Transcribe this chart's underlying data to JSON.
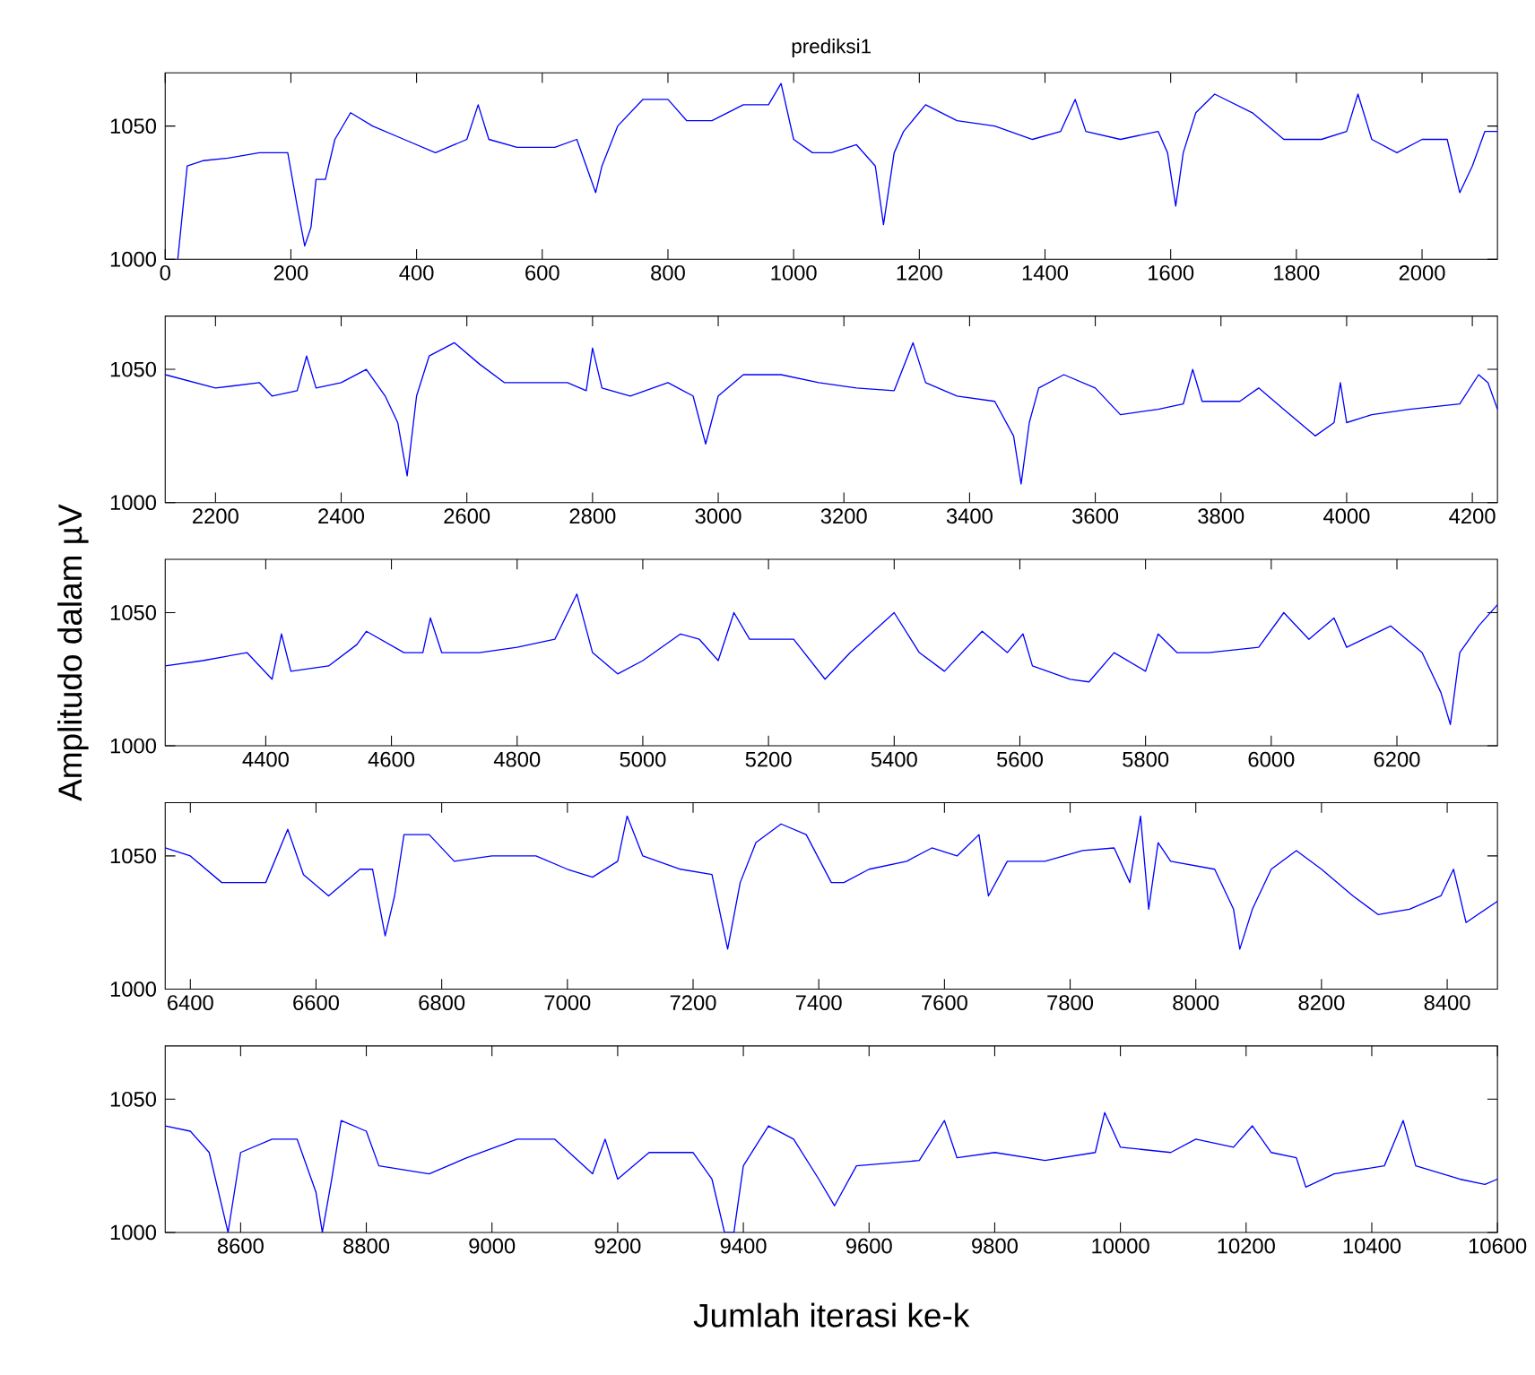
{
  "chart_data": [
    {
      "type": "line",
      "title": "prediksi1",
      "color": "#0000ff",
      "xlim": [
        0,
        2120
      ],
      "ylim": [
        1000,
        1070
      ],
      "xticks": [
        0,
        200,
        400,
        600,
        800,
        1000,
        1200,
        1400,
        1600,
        1800,
        2000
      ],
      "yticks": [
        1000,
        1050
      ],
      "x": [
        20,
        35,
        60,
        100,
        150,
        195,
        210,
        222,
        232,
        240,
        255,
        270,
        295,
        330,
        380,
        430,
        480,
        498,
        515,
        560,
        620,
        655,
        670,
        685,
        695,
        720,
        760,
        800,
        830,
        870,
        920,
        960,
        980,
        1000,
        1030,
        1060,
        1100,
        1130,
        1143,
        1160,
        1175,
        1210,
        1260,
        1320,
        1380,
        1425,
        1448,
        1465,
        1520,
        1580,
        1595,
        1608,
        1620,
        1640,
        1670,
        1730,
        1780,
        1840,
        1880,
        1898,
        1920,
        1960,
        2000,
        2040,
        2060,
        2080,
        2100,
        2120
      ],
      "values": [
        1000,
        1035,
        1037,
        1038,
        1040,
        1040,
        1020,
        1005,
        1012,
        1030,
        1030,
        1045,
        1055,
        1050,
        1045,
        1040,
        1045,
        1058,
        1045,
        1042,
        1042,
        1045,
        1035,
        1025,
        1035,
        1050,
        1060,
        1060,
        1052,
        1052,
        1058,
        1058,
        1066,
        1045,
        1040,
        1040,
        1043,
        1035,
        1013,
        1040,
        1048,
        1058,
        1052,
        1050,
        1045,
        1048,
        1060,
        1048,
        1045,
        1048,
        1040,
        1020,
        1040,
        1055,
        1062,
        1055,
        1045,
        1045,
        1048,
        1062,
        1045,
        1040,
        1045,
        1045,
        1025,
        1035,
        1048,
        1048
      ]
    },
    {
      "type": "line",
      "color": "#0000ff",
      "xlim": [
        2120,
        4240
      ],
      "ylim": [
        1000,
        1070
      ],
      "xticks": [
        2200,
        2400,
        2600,
        2800,
        3000,
        3200,
        3400,
        3600,
        3800,
        4000,
        4200
      ],
      "yticks": [
        1000,
        1050
      ],
      "x": [
        2120,
        2200,
        2270,
        2290,
        2330,
        2345,
        2360,
        2400,
        2440,
        2470,
        2490,
        2505,
        2520,
        2540,
        2580,
        2620,
        2660,
        2700,
        2760,
        2790,
        2800,
        2815,
        2860,
        2920,
        2960,
        2980,
        3000,
        3040,
        3100,
        3160,
        3220,
        3280,
        3310,
        3330,
        3380,
        3440,
        3470,
        3482,
        3495,
        3510,
        3550,
        3600,
        3640,
        3700,
        3740,
        3755,
        3770,
        3830,
        3860,
        3900,
        3950,
        3980,
        3990,
        4000,
        4040,
        4100,
        4180,
        4210,
        4225,
        4240
      ],
      "values": [
        1048,
        1043,
        1045,
        1040,
        1042,
        1055,
        1043,
        1045,
        1050,
        1040,
        1030,
        1010,
        1040,
        1055,
        1060,
        1052,
        1045,
        1045,
        1045,
        1042,
        1058,
        1043,
        1040,
        1045,
        1040,
        1022,
        1040,
        1048,
        1048,
        1045,
        1043,
        1042,
        1060,
        1045,
        1040,
        1038,
        1025,
        1007,
        1030,
        1043,
        1048,
        1043,
        1033,
        1035,
        1037,
        1050,
        1038,
        1038,
        1043,
        1035,
        1025,
        1030,
        1045,
        1030,
        1033,
        1035,
        1037,
        1048,
        1045,
        1035
      ]
    },
    {
      "type": "line",
      "ylabel": "Amplitudo dalam µV",
      "color": "#0000ff",
      "xlim": [
        4240,
        6360
      ],
      "ylim": [
        1000,
        1070
      ],
      "xticks": [
        4400,
        4600,
        4800,
        5000,
        5200,
        5400,
        5600,
        5800,
        6000,
        6200
      ],
      "yticks": [
        1000,
        1050
      ],
      "x": [
        4240,
        4300,
        4370,
        4410,
        4425,
        4440,
        4500,
        4545,
        4560,
        4620,
        4650,
        4662,
        4680,
        4740,
        4800,
        4860,
        4895,
        4920,
        4960,
        5000,
        5060,
        5090,
        5120,
        5145,
        5170,
        5240,
        5290,
        5330,
        5400,
        5440,
        5480,
        5540,
        5580,
        5605,
        5620,
        5680,
        5710,
        5750,
        5800,
        5820,
        5850,
        5900,
        5980,
        6020,
        6060,
        6100,
        6120,
        6190,
        6240,
        6270,
        6285,
        6300,
        6330,
        6360
      ],
      "values": [
        1030,
        1032,
        1035,
        1025,
        1042,
        1028,
        1030,
        1038,
        1043,
        1035,
        1035,
        1048,
        1035,
        1035,
        1037,
        1040,
        1057,
        1035,
        1027,
        1032,
        1042,
        1040,
        1032,
        1050,
        1040,
        1040,
        1025,
        1035,
        1050,
        1035,
        1028,
        1043,
        1035,
        1042,
        1030,
        1025,
        1024,
        1035,
        1028,
        1042,
        1035,
        1035,
        1037,
        1050,
        1040,
        1048,
        1037,
        1045,
        1035,
        1020,
        1008,
        1035,
        1045,
        1053
      ]
    },
    {
      "type": "line",
      "color": "#0000ff",
      "xlim": [
        6360,
        8480
      ],
      "ylim": [
        1000,
        1070
      ],
      "xticks": [
        6400,
        6600,
        6800,
        7000,
        7200,
        7400,
        7600,
        7800,
        8000,
        8200,
        8400
      ],
      "yticks": [
        1000,
        1050
      ],
      "x": [
        6360,
        6400,
        6450,
        6520,
        6555,
        6580,
        6620,
        6670,
        6690,
        6710,
        6725,
        6740,
        6780,
        6820,
        6880,
        6950,
        7000,
        7040,
        7080,
        7095,
        7120,
        7180,
        7230,
        7255,
        7275,
        7300,
        7340,
        7380,
        7420,
        7440,
        7480,
        7540,
        7580,
        7620,
        7655,
        7670,
        7700,
        7760,
        7820,
        7870,
        7895,
        7912,
        7925,
        7940,
        7960,
        8030,
        8060,
        8070,
        8090,
        8120,
        8160,
        8200,
        8250,
        8290,
        8340,
        8390,
        8410,
        8430,
        8480
      ],
      "values": [
        1053,
        1050,
        1040,
        1040,
        1060,
        1043,
        1035,
        1045,
        1045,
        1020,
        1035,
        1058,
        1058,
        1048,
        1050,
        1050,
        1045,
        1042,
        1048,
        1065,
        1050,
        1045,
        1043,
        1015,
        1040,
        1055,
        1062,
        1058,
        1040,
        1040,
        1045,
        1048,
        1053,
        1050,
        1058,
        1035,
        1048,
        1048,
        1052,
        1053,
        1040,
        1065,
        1030,
        1055,
        1048,
        1045,
        1030,
        1015,
        1030,
        1045,
        1052,
        1045,
        1035,
        1028,
        1030,
        1035,
        1045,
        1025,
        1033
      ]
    },
    {
      "type": "line",
      "xlabel": "Jumlah iterasi ke-k",
      "color": "#0000ff",
      "xlim": [
        8480,
        10600
      ],
      "ylim": [
        1000,
        1070
      ],
      "xticks": [
        8600,
        8800,
        9000,
        9200,
        9400,
        9600,
        9800,
        10000,
        10200,
        10400,
        10600
      ],
      "yticks": [
        1000,
        1050
      ],
      "x": [
        8480,
        8520,
        8550,
        8580,
        8600,
        8650,
        8690,
        8720,
        8730,
        8745,
        8760,
        8800,
        8820,
        8900,
        8960,
        9040,
        9100,
        9160,
        9180,
        9200,
        9250,
        9320,
        9350,
        9370,
        9385,
        9400,
        9440,
        9480,
        9520,
        9545,
        9580,
        9680,
        9720,
        9740,
        9800,
        9880,
        9960,
        9975,
        10000,
        10080,
        10120,
        10180,
        10210,
        10240,
        10280,
        10295,
        10340,
        10420,
        10450,
        10470,
        10540,
        10580,
        10600
      ],
      "values": [
        1040,
        1038,
        1030,
        1000,
        1030,
        1035,
        1035,
        1015,
        1000,
        1020,
        1042,
        1038,
        1025,
        1022,
        1028,
        1035,
        1035,
        1022,
        1035,
        1020,
        1030,
        1030,
        1020,
        1000,
        1000,
        1025,
        1040,
        1035,
        1020,
        1010,
        1025,
        1027,
        1042,
        1028,
        1030,
        1027,
        1030,
        1045,
        1032,
        1030,
        1035,
        1032,
        1040,
        1030,
        1028,
        1017,
        1022,
        1025,
        1042,
        1025,
        1020,
        1018,
        1020
      ]
    }
  ]
}
